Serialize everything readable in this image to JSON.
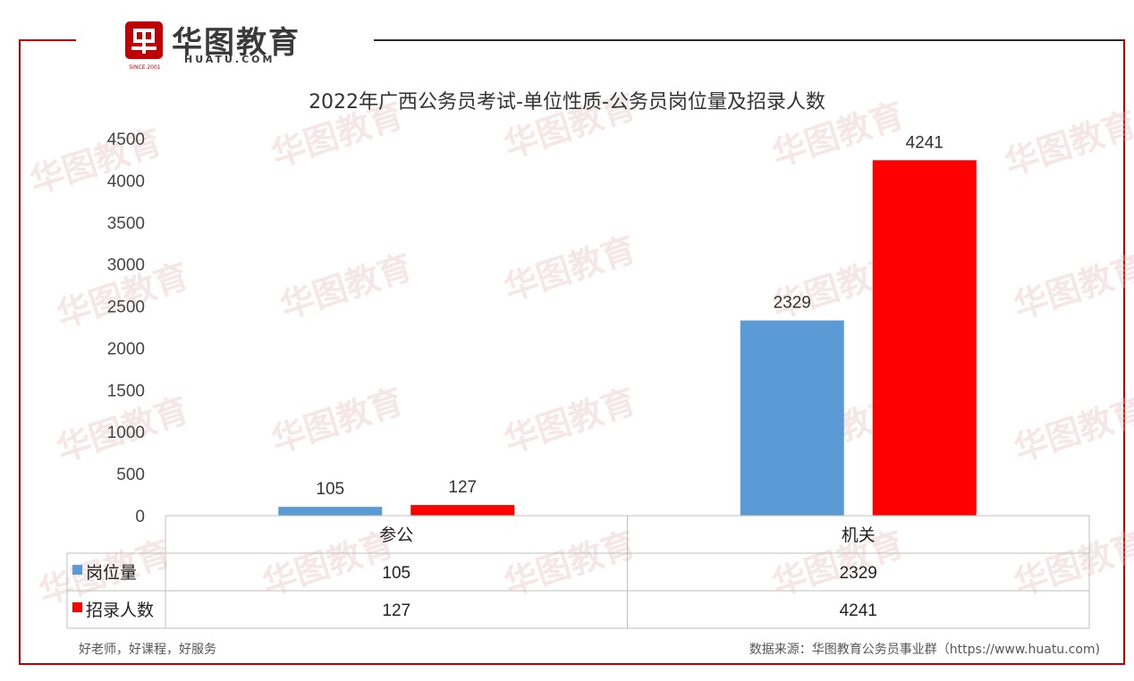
{
  "branding": {
    "logo_cn": "华图教育",
    "logo_en": "HUATU.COM",
    "since": "SINCE 2001",
    "brand_color": "#c00000"
  },
  "footer": {
    "slogan": "好老师，好课程，好服务",
    "source": "数据来源：华图教育公务员事业群（https://www.huatu.com)"
  },
  "chart_data": {
    "type": "bar",
    "title": "2022年广西公务员考试-单位性质-公务员岗位量及招录人数",
    "categories": [
      "参公",
      "机关"
    ],
    "series": [
      {
        "name": "岗位量",
        "values": [
          105,
          2329
        ],
        "color": "#5b9bd5"
      },
      {
        "name": "招录人数",
        "values": [
          127,
          4241
        ],
        "color": "#ff0000"
      }
    ],
    "ylim": [
      0,
      4500
    ],
    "yticks": [
      "0",
      "500",
      "1000",
      "1500",
      "2000",
      "2500",
      "3000",
      "3500",
      "4000",
      "4500"
    ],
    "data_labels": true,
    "grid": false,
    "data_table": true,
    "legend_placement": "data-table"
  }
}
